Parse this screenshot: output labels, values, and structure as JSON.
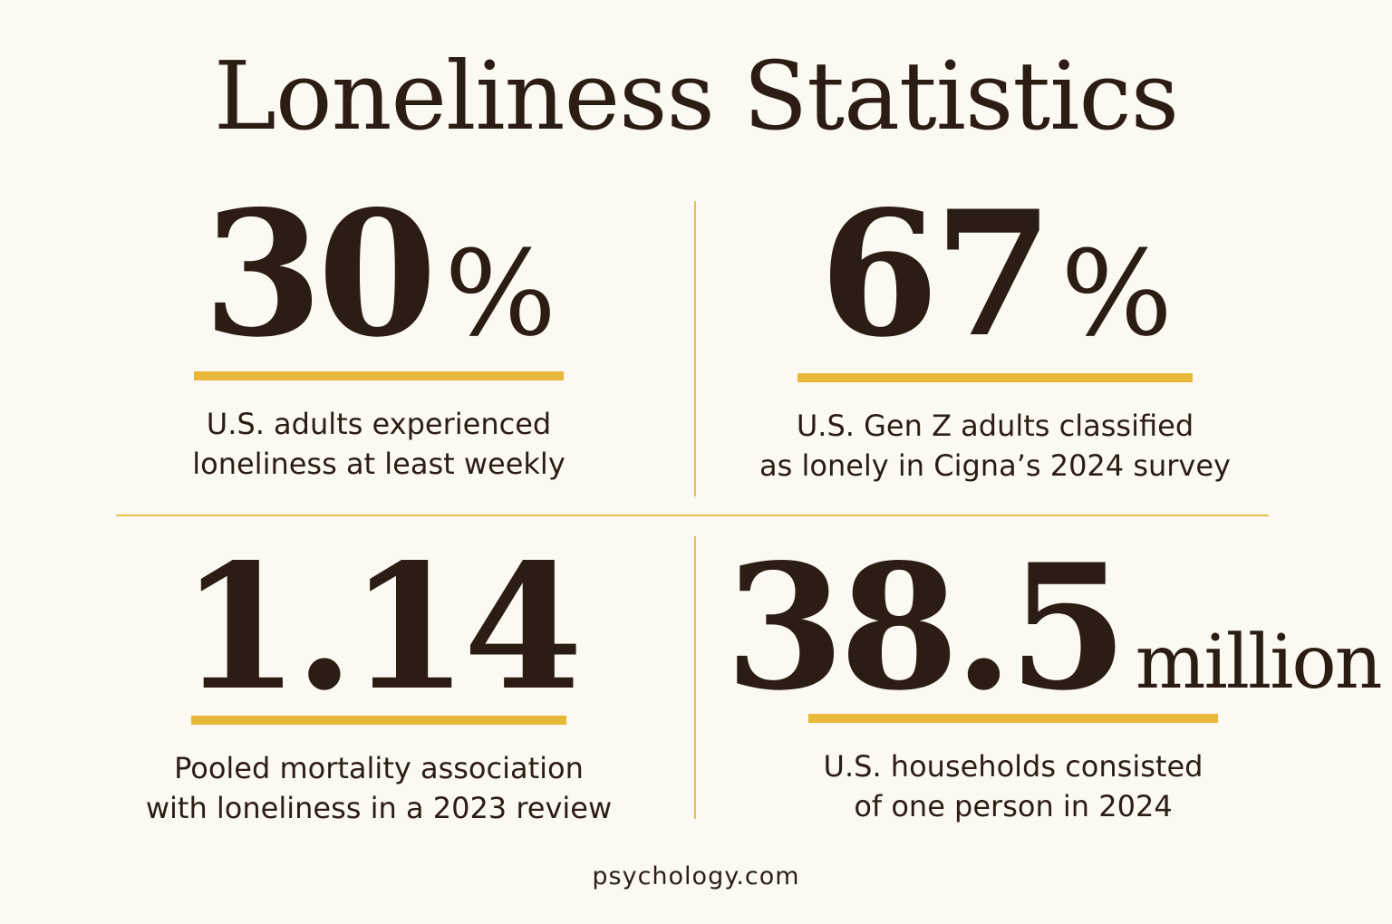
{
  "title": "Loneliness Statistics",
  "stats": [
    {
      "number": "30",
      "unit": "%",
      "desc_line1": "U.S. adults experienced",
      "desc_line2": "loneliness at least weekly"
    },
    {
      "number": "67",
      "unit": "%",
      "desc_line1": "U.S. Gen Z adults classified",
      "desc_line2": "as lonely in Cigna’s 2024 survey"
    },
    {
      "number": "1.14",
      "unit": "",
      "desc_line1": "Pooled mortality association",
      "desc_line2": "with loneliness in a 2023 review"
    },
    {
      "number": "38.5",
      "unit": "million",
      "desc_line1": "U.S. households consisted",
      "desc_line2": "of one person in 2024"
    }
  ],
  "footer": "psychology.com",
  "colors": {
    "background": "#fcf9f3",
    "text": "#2b1d14",
    "accent": "#e9b83a"
  }
}
